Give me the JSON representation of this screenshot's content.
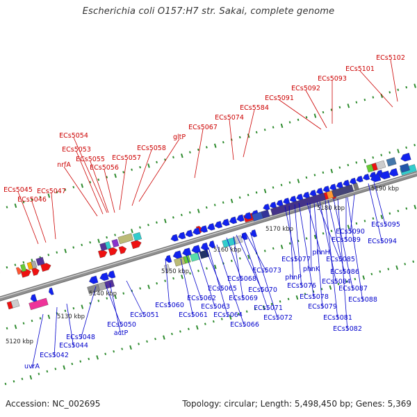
{
  "title": "Escherichia coli O157:H7 str. Sakai, complete genome",
  "footer": {
    "accession": "Accession: NC_002695",
    "summary": "Topology: circular; Length: 5,498,450 bp; Genes: 5,369"
  },
  "colors": {
    "backbone": "#8f8f8f",
    "tick": "#2e8b2e",
    "label_forward": "#cc0000",
    "label_reverse": "#0000cc"
  },
  "scale_labels": [
    "5120 kbp",
    "5130 kbp",
    "5140 kbp",
    "5150 kbp",
    "5160 kbp",
    "5170 kbp",
    "5180 kbp",
    "5190 kbp"
  ],
  "labels_forward": [
    "ECs5045",
    "ECs5046",
    "ECs5047",
    "nrfA",
    "ECs5053",
    "ECs5054",
    "ECs5055",
    "ECs5056",
    "ECs5057",
    "ECs5058",
    "gltP",
    "ECs5067",
    "ECs5074",
    "ECs5584",
    "ECs5091",
    "ECs5092",
    "ECs5093",
    "ECs5101",
    "ECs5102"
  ],
  "labels_reverse": [
    "uvrA",
    "ECs5042",
    "ECs5044",
    "ECs5048",
    "ECs5050",
    "actP",
    "ECs5051",
    "ECs5060",
    "ECs5061",
    "ECs5062",
    "ECs5063",
    "ECs5065",
    "ECs5064",
    "ECs5066",
    "ECs5068",
    "ECs5069",
    "ECs5070",
    "ECs5071",
    "ECs5073",
    "ECs5072",
    "ECs5077",
    "phnP",
    "ECs5076",
    "ECs5078",
    "phnH",
    "phnK",
    "ECs5079",
    "ECs5085",
    "ECs5084",
    "ECs5081",
    "ECs5086",
    "ECs5087",
    "ECs5082",
    "ECs5089",
    "ECs5088",
    "ECs5090",
    "ECs5095",
    "ECs5094"
  ]
}
